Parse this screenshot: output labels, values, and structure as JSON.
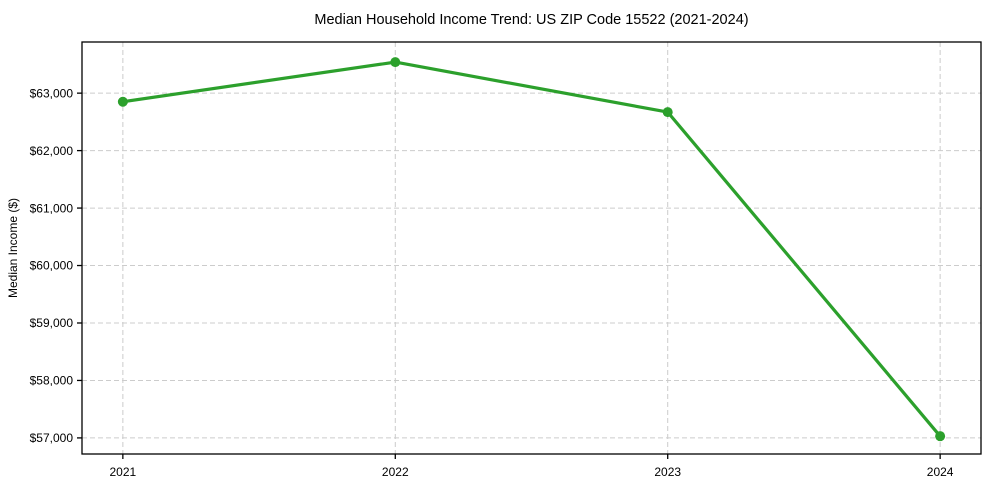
{
  "chart_data": {
    "type": "line",
    "title": "Median Household Income Trend: US ZIP Code 15522 (2021-2024)",
    "xlabel": "",
    "ylabel": "Median Income ($)",
    "categories": [
      "2021",
      "2022",
      "2023",
      "2024"
    ],
    "x": [
      2021,
      2022,
      2023,
      2024
    ],
    "values": [
      62850,
      63540,
      62670,
      57030
    ],
    "series": [
      {
        "name": "Median Household Income",
        "values": [
          62850,
          63540,
          62670,
          57030
        ]
      }
    ],
    "yticks": [
      57000,
      58000,
      59000,
      60000,
      61000,
      62000,
      63000
    ],
    "ytick_labels": [
      "$57,000",
      "$58,000",
      "$59,000",
      "$60,000",
      "$61,000",
      "$62,000",
      "$63,000"
    ],
    "xtick_labels": [
      "2021",
      "2022",
      "2023",
      "2024"
    ],
    "xlim": [
      2020.85,
      2024.15
    ],
    "ylim": [
      56720,
      63890
    ],
    "grid": true,
    "grid_style": "dashed",
    "legend": false,
    "colors": {
      "line": "#2ca02c",
      "marker": "#2ca02c",
      "grid": "#cccccc",
      "spine": "#000000",
      "text": "#000000",
      "background": "#ffffff"
    },
    "marker": "o",
    "line_width": 3.2,
    "marker_radius": 5
  }
}
